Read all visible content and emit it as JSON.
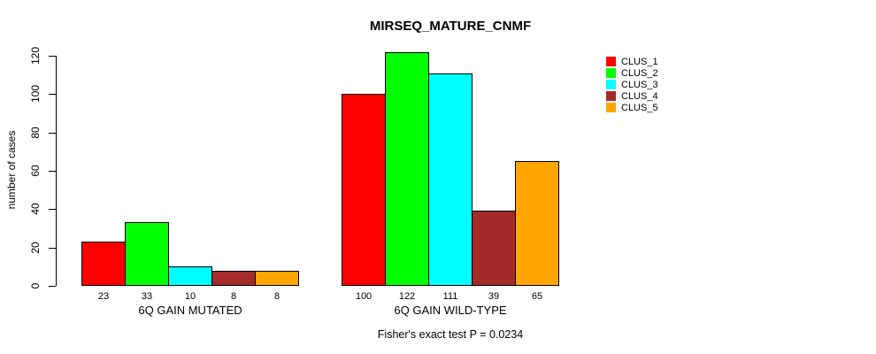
{
  "chart_data": {
    "type": "bar",
    "title": "MIRSEQ_MATURE_CNMF",
    "xlabel": "",
    "ylabel": "number of cases",
    "ylim": [
      0,
      120
    ],
    "yticks": [
      0,
      20,
      40,
      60,
      80,
      100,
      120
    ],
    "grid": false,
    "legend_position": "top-right",
    "categories": [
      "6Q GAIN MUTATED",
      "6Q GAIN WILD-TYPE"
    ],
    "series": [
      {
        "name": "CLUS_1",
        "color": "#FF0000",
        "values": [
          23,
          100
        ]
      },
      {
        "name": "CLUS_2",
        "color": "#00FF00",
        "values": [
          33,
          122
        ]
      },
      {
        "name": "CLUS_3",
        "color": "#00FFFF",
        "values": [
          10,
          111
        ]
      },
      {
        "name": "CLUS_4",
        "color": "#A52A2A",
        "values": [
          8,
          39
        ]
      },
      {
        "name": "CLUS_5",
        "color": "#FFA500",
        "values": [
          8,
          65
        ]
      }
    ],
    "bar_value_labels_shown": true,
    "caption": "Fisher's exact test P = 0.0234"
  }
}
